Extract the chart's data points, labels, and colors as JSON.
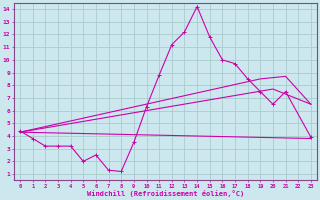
{
  "xlabel": "Windchill (Refroidissement éolien,°C)",
  "background_color": "#cce8ee",
  "grid_color": "#aacccc",
  "line_color": "#cc00aa",
  "spine_color": "#884488",
  "x_ticks": [
    0,
    1,
    2,
    3,
    4,
    5,
    6,
    7,
    8,
    9,
    10,
    11,
    12,
    13,
    14,
    15,
    16,
    17,
    18,
    19,
    20,
    21,
    22,
    23
  ],
  "y_ticks": [
    1,
    2,
    3,
    4,
    5,
    6,
    7,
    8,
    9,
    10,
    11,
    12,
    13,
    14
  ],
  "xlim": [
    -0.5,
    23.5
  ],
  "ylim": [
    0.5,
    14.5
  ],
  "jagged": {
    "x": [
      0,
      1,
      2,
      3,
      4,
      5,
      6,
      7,
      8,
      9,
      10,
      11,
      12,
      13,
      14,
      15,
      16,
      17,
      18,
      19,
      20,
      21,
      23
    ],
    "y": [
      4.4,
      3.8,
      3.2,
      3.2,
      3.2,
      2.0,
      2.5,
      1.3,
      1.2,
      3.5,
      6.3,
      8.8,
      11.2,
      12.2,
      14.2,
      11.8,
      10.0,
      9.7,
      8.5,
      7.5,
      6.5,
      7.5,
      3.9
    ]
  },
  "line1": {
    "x": [
      0,
      23
    ],
    "y": [
      4.3,
      3.8
    ]
  },
  "line2": {
    "x": [
      0,
      20,
      23
    ],
    "y": [
      4.3,
      7.7,
      6.5
    ]
  },
  "line3": {
    "x": [
      0,
      19,
      21,
      23
    ],
    "y": [
      4.3,
      8.5,
      8.7,
      6.5
    ]
  }
}
